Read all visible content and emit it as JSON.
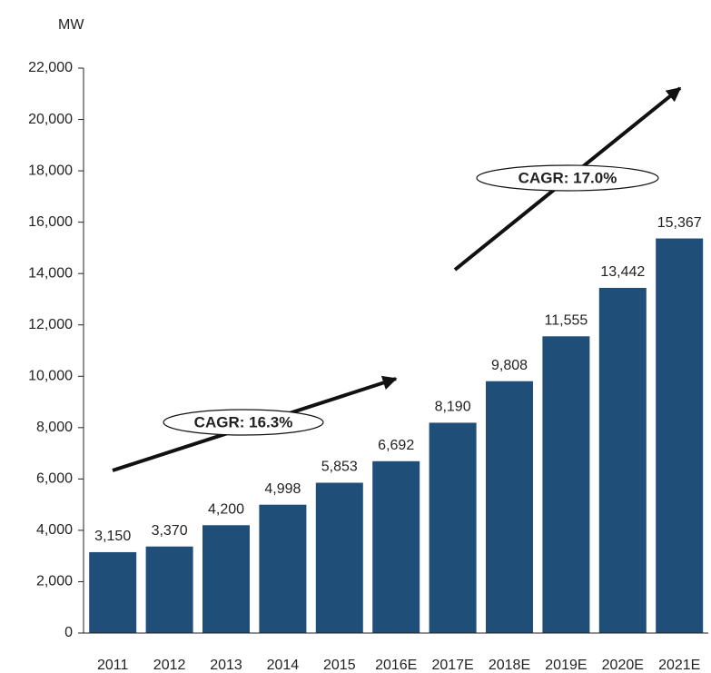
{
  "chart_data": {
    "type": "bar",
    "y_label": "MW",
    "categories": [
      "2011",
      "2012",
      "2013",
      "2014",
      "2015",
      "2016E",
      "2017E",
      "2018E",
      "2019E",
      "2020E",
      "2021E"
    ],
    "values": [
      3150,
      3370,
      4200,
      4998,
      5853,
      6692,
      8190,
      9808,
      11555,
      13442,
      15367
    ],
    "value_labels": [
      "3,150",
      "3,370",
      "4,200",
      "4,998",
      "5,853",
      "6,692",
      "8,190",
      "9,808",
      "11,555",
      "13,442",
      "15,367"
    ],
    "color": "#1f4e79",
    "ylim": [
      0,
      22000
    ],
    "yticks": [
      0,
      {
        "value": 2000,
        "label": "2,000"
      },
      {
        "value": 4000,
        "label": "4,000"
      },
      {
        "value": 6000,
        "label": "6,000"
      },
      {
        "value": 8000,
        "label": "8,000"
      },
      {
        "value": 10000,
        "label": "10,000"
      },
      {
        "value": 12000,
        "label": "12,000"
      },
      {
        "value": 14000,
        "label": "14,000"
      },
      {
        "value": 16000,
        "label": "16,000"
      },
      {
        "value": 18000,
        "label": "18,000"
      },
      {
        "value": 20000,
        "label": "20,000"
      },
      {
        "value": 22000,
        "label": "22,000"
      }
    ],
    "annotations": [
      "CAGR: 16.3%",
      "CAGR: 17.0%"
    ]
  }
}
